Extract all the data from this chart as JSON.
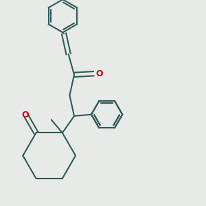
{
  "bg_color": "#e8eae8",
  "bond_color": "#2d5a5a",
  "oxygen_color": "#cc0000",
  "line_width": 1.5,
  "dbo": 0.012,
  "ring_dbo": 0.01
}
